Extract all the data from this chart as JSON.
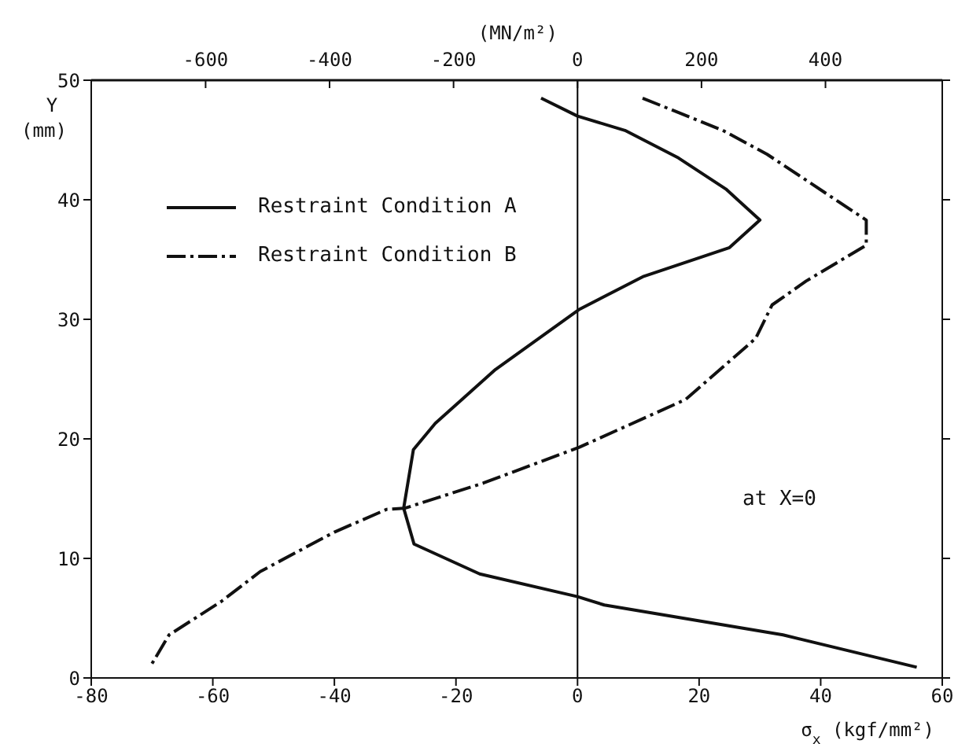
{
  "chart_data": {
    "type": "line",
    "xlabel": "σ$_{x}$ (kgf/mm²)",
    "ylabel": "Y (mm)",
    "x2label": "(MN/m²)",
    "xlim": [
      -80,
      60
    ],
    "xticks": [
      -80,
      -60,
      -40,
      -20,
      0,
      20,
      40,
      60
    ],
    "x2lim": [
      -784.5,
      588.4
    ],
    "x2ticks": [
      -600,
      -400,
      -200,
      0,
      200,
      400
    ],
    "ylim": [
      0,
      50
    ],
    "yticks": [
      0,
      10,
      20,
      30,
      40,
      50
    ],
    "legend": "top left",
    "marker": "none",
    "ref_lines": [
      {
        "axis": "x",
        "value": 0,
        "color": "#000000"
      }
    ],
    "annotations": [
      "at X=0"
    ],
    "series": [
      {
        "name": "Restraint Condition A",
        "color": "#111111",
        "line_style": "solid",
        "x": [
          -6,
          0,
          7.8,
          16.6,
          24.4,
          30,
          25,
          10.9,
          0.2,
          -13.5,
          -23.4,
          -27,
          -28.6,
          -26.9,
          -16.1,
          0,
          4.4,
          33.8,
          55.8
        ],
        "values": [
          48.5,
          47,
          45.8,
          43.5,
          40.9,
          38.3,
          36,
          33.6,
          30.8,
          25.8,
          21.3,
          19.1,
          14.2,
          11.2,
          8.7,
          6.8,
          6.1,
          3.6,
          0.9
        ]
      },
      {
        "name": "Restraint Condition B",
        "color": "#111111",
        "line_style": "dashed",
        "x": [
          10.7,
          23.9,
          31.2,
          47.5,
          47.5,
          37.6,
          32,
          29.3,
          17.8,
          0.3,
          -15.5,
          -28.4,
          -31.4,
          -40,
          -52.2,
          -58.6,
          -67.2,
          -70
        ],
        "values": [
          48.5,
          45.8,
          43.8,
          38.3,
          36.2,
          33.2,
          31.2,
          28.4,
          23.3,
          19.3,
          16.3,
          14.2,
          14.1,
          12.2,
          8.9,
          6.4,
          3.6,
          1.2
        ]
      }
    ]
  }
}
